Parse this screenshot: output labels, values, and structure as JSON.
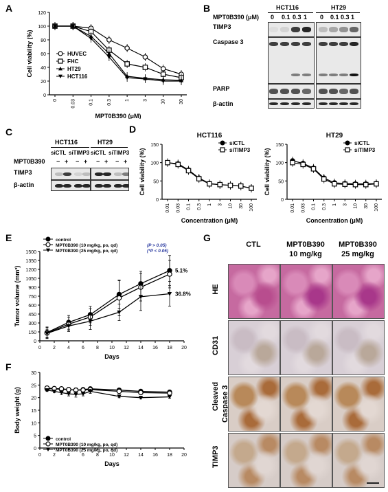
{
  "panels": {
    "A": {
      "letter": "A",
      "chart_data": {
        "type": "line",
        "ylabel": "Cell viability (%)",
        "xlabel": "MPT0B390 (μM)",
        "categories": [
          "0",
          "0.03",
          "0.1",
          "0.3",
          "1",
          "3",
          "10",
          "30"
        ],
        "ylim": [
          0,
          120
        ],
        "yticks": [
          "0",
          "20",
          "40",
          "60",
          "80",
          "100",
          "120"
        ],
        "series": [
          {
            "name": "HUVEC",
            "marker": "circle-open",
            "values": [
              100,
              100,
              97,
              80,
              68,
              55,
              38,
              30
            ]
          },
          {
            "name": "FHC",
            "marker": "square-open",
            "values": [
              100,
              100,
              92,
              65,
              45,
              40,
              30,
              25
            ]
          },
          {
            "name": "HT29",
            "marker": "triangle-up",
            "values": [
              100,
              100,
              85,
              60,
              27,
              24,
              22,
              21
            ]
          },
          {
            "name": "HCT116",
            "marker": "triangle-down",
            "values": [
              100,
              100,
              82,
              55,
              25,
              23,
              20,
              20
            ]
          }
        ]
      }
    },
    "B": {
      "letter": "B",
      "drug_label": "MPT0B390 (μM)",
      "cell_lines": [
        "HCT116",
        "HT29"
      ],
      "doses": [
        "0",
        "0.1",
        "0.3",
        "1",
        "0",
        "0.1",
        "0.3",
        "1"
      ],
      "rows": [
        "TIMP3",
        "Caspase 3",
        "PARP",
        "β-actin"
      ]
    },
    "C": {
      "letter": "C",
      "cell_lines": [
        "HCT116",
        "HT29"
      ],
      "conditions": [
        "siCTL",
        "siTIMP3",
        "siCTL",
        "siTIMP3"
      ],
      "drug_label": "MPT0B390",
      "signs": [
        "−",
        "+",
        "−",
        "+",
        "−",
        "+",
        "−",
        "+"
      ],
      "rows": [
        "TIMP3",
        "β-actin"
      ]
    },
    "D": {
      "letter": "D",
      "chart_data": [
        {
          "type": "line",
          "title": "HCT116",
          "ylabel": "Cell viability (%)",
          "xlabel": "Concentration (μM)",
          "categories": [
            "0.01",
            "0.03",
            "0.1",
            "0.3",
            "1",
            "3",
            "10",
            "30",
            "100"
          ],
          "ylim": [
            0,
            150
          ],
          "yticks": [
            "0",
            "50",
            "100",
            "150"
          ],
          "series": [
            {
              "name": "siCTL",
              "marker": "circle-filled",
              "values": [
                100,
                97,
                80,
                58,
                43,
                40,
                38,
                36,
                30
              ]
            },
            {
              "name": "siTIMP3",
              "marker": "square-open",
              "values": [
                100,
                95,
                78,
                56,
                42,
                40,
                38,
                36,
                30
              ]
            }
          ]
        },
        {
          "type": "line",
          "title": "HT29",
          "ylabel": "Cell viability (%)",
          "xlabel": "Concentration (μM)",
          "categories": [
            "0.01",
            "0.03",
            "0.1",
            "0.3",
            "1",
            "3",
            "10",
            "30",
            "100"
          ],
          "ylim": [
            0,
            150
          ],
          "yticks": [
            "0",
            "50",
            "100",
            "150"
          ],
          "series": [
            {
              "name": "siCTL",
              "marker": "circle-filled",
              "values": [
                105,
                98,
                85,
                58,
                45,
                43,
                42,
                42,
                43
              ]
            },
            {
              "name": "siTIMP3",
              "marker": "square-open",
              "values": [
                100,
                95,
                83,
                55,
                42,
                41,
                40,
                40,
                42
              ]
            }
          ]
        }
      ]
    },
    "E": {
      "letter": "E",
      "chart_data": {
        "type": "line",
        "ylabel": "Tumor volume (mm³)",
        "xlabel": "Days",
        "xlim": [
          0,
          20
        ],
        "xticks": [
          "0",
          "2",
          "4",
          "6",
          "8",
          "10",
          "12",
          "14",
          "16",
          "18",
          "20"
        ],
        "ylim": [
          0,
          1500
        ],
        "yticks": [
          "0",
          "150",
          "300",
          "450",
          "600",
          "750",
          "900",
          "1050",
          "1200",
          "1350",
          "1500"
        ],
        "series": [
          {
            "name": "control",
            "marker": "circle-filled",
            "x": [
              1,
              4,
              7,
              11,
              14,
              18
            ],
            "values": [
              140,
              310,
              440,
              780,
              960,
              1180
            ]
          },
          {
            "name": "MPT0B390 (10 mg/kg, po, qd)",
            "marker": "circle-open",
            "x": [
              1,
              4,
              7,
              11,
              14,
              18
            ],
            "values": [
              130,
              280,
              400,
              720,
              900,
              1120
            ]
          },
          {
            "name": "MPT0B390 (25 mg/kg, po, qd)",
            "marker": "triangle-down",
            "x": [
              1,
              4,
              7,
              11,
              14,
              18
            ],
            "values": [
              125,
              250,
              330,
              480,
              740,
              790
            ]
          }
        ],
        "legend_notes": [
          "(P > 0.05)",
          "(*P < 0.05)"
        ],
        "annotations": [
          "5.1%",
          "36.8%"
        ]
      }
    },
    "F": {
      "letter": "F",
      "chart_data": {
        "type": "line",
        "ylabel": "Body weight (g)",
        "xlabel": "Days",
        "xlim": [
          0,
          20
        ],
        "xticks": [
          "0",
          "2",
          "4",
          "6",
          "8",
          "10",
          "12",
          "14",
          "16",
          "18",
          "20"
        ],
        "ylim": [
          0,
          30
        ],
        "yticks": [
          "0",
          "5",
          "10",
          "15",
          "20",
          "25",
          "30"
        ],
        "series": [
          {
            "name": "control",
            "marker": "circle-filled",
            "x": [
              1,
              2,
              3,
              4,
              5,
              6,
              7,
              11,
              14,
              18
            ],
            "values": [
              23.5,
              23.5,
              23.3,
              23.2,
              23,
              23.2,
              23.5,
              23,
              22.5,
              22.2
            ]
          },
          {
            "name": "MPT0B390 (10 mg/kg, po, qd)",
            "marker": "circle-open",
            "x": [
              1,
              2,
              3,
              4,
              5,
              6,
              7,
              11,
              14,
              18
            ],
            "values": [
              23.8,
              23.6,
              23.5,
              23.2,
              23,
              23,
              23.2,
              22.5,
              22,
              21.8
            ]
          },
          {
            "name": "MPT0B390 (25 mg/kg, po, qd)",
            "marker": "triangle-down",
            "x": [
              1,
              2,
              3,
              4,
              5,
              6,
              7,
              11,
              14,
              18
            ],
            "values": [
              23,
              22.5,
              22,
              21.5,
              21.3,
              21.5,
              22.5,
              20.5,
              20,
              20.3
            ]
          }
        ]
      }
    },
    "G": {
      "letter": "G",
      "columns": [
        "CTL",
        "MPT0B390\n10 mg/kg",
        "MPT0B390\n25 mg/kg"
      ],
      "col_line1": [
        "CTL",
        "MPT0B390",
        "MPT0B390"
      ],
      "col_line2": [
        "",
        "10 mg/kg",
        "25 mg/kg"
      ],
      "rows": [
        "HE",
        "CD31",
        "Cleaved Caspase 3",
        "TIMP3"
      ],
      "row_line1": [
        "HE",
        "CD31",
        "Cleaved",
        "TIMP3"
      ],
      "row_line2": [
        "",
        "",
        "Caspase 3",
        ""
      ]
    }
  }
}
